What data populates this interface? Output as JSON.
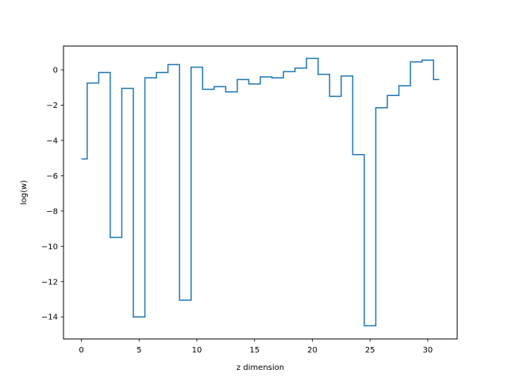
{
  "chart_data": {
    "type": "line",
    "drawstyle": "steps-mid",
    "title": "",
    "xlabel": "z dimension",
    "ylabel": "log(w)",
    "xlim": [
      -1.55,
      32.55
    ],
    "ylim": [
      -15.25,
      1.35
    ],
    "xticks": [
      0,
      5,
      10,
      15,
      20,
      25,
      30
    ],
    "yticks": [
      -14,
      -12,
      -10,
      -8,
      -6,
      -4,
      -2,
      0
    ],
    "xtick_labels": [
      "0",
      "5",
      "10",
      "15",
      "20",
      "25",
      "30"
    ],
    "ytick_labels": [
      "−14",
      "−12",
      "−10",
      "−8",
      "−6",
      "−4",
      "−2",
      "0"
    ],
    "grid": false,
    "legend": false,
    "series": [
      {
        "color": "#1f77b4",
        "x": [
          0,
          1,
          2,
          3,
          4,
          5,
          6,
          7,
          8,
          9,
          10,
          11,
          12,
          13,
          14,
          15,
          16,
          17,
          18,
          19,
          20,
          21,
          22,
          23,
          24,
          25,
          26,
          27,
          28,
          29,
          30,
          31
        ],
        "values": [
          -5.05,
          -0.75,
          -0.15,
          -9.5,
          -1.05,
          -14.0,
          -0.45,
          -0.15,
          0.3,
          -13.05,
          0.15,
          -1.1,
          -0.95,
          -1.25,
          -0.55,
          -0.8,
          -0.4,
          -0.45,
          -0.1,
          0.1,
          0.65,
          -0.25,
          -1.5,
          -0.35,
          -4.8,
          -14.5,
          -2.15,
          -1.45,
          -0.9,
          0.45,
          0.55,
          -0.55
        ]
      }
    ]
  }
}
